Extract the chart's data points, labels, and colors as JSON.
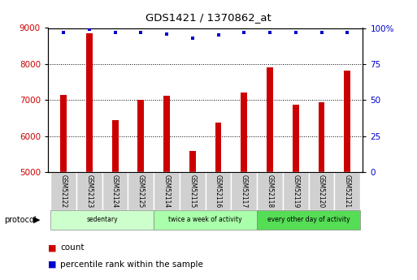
{
  "title": "GDS1421 / 1370862_at",
  "samples": [
    "GSM52122",
    "GSM52123",
    "GSM52124",
    "GSM52125",
    "GSM52114",
    "GSM52115",
    "GSM52116",
    "GSM52117",
    "GSM52118",
    "GSM52119",
    "GSM52120",
    "GSM52121"
  ],
  "counts": [
    7150,
    8850,
    6450,
    7000,
    7120,
    5600,
    6380,
    7220,
    7900,
    6880,
    6950,
    7820
  ],
  "percentile_ranks": [
    97,
    99,
    97,
    97,
    96,
    93,
    95,
    97,
    97,
    97,
    97,
    97
  ],
  "ylim_left": [
    5000,
    9000
  ],
  "ylim_right": [
    0,
    100
  ],
  "yticks_left": [
    5000,
    6000,
    7000,
    8000,
    9000
  ],
  "yticks_right": [
    0,
    25,
    50,
    75,
    100
  ],
  "bar_color": "#cc0000",
  "dot_color": "#0000cc",
  "groups": [
    {
      "label": "sedentary",
      "start": 0,
      "end": 4,
      "color": "#ccffcc"
    },
    {
      "label": "twice a week of activity",
      "start": 4,
      "end": 8,
      "color": "#aaffaa"
    },
    {
      "label": "every other day of activity",
      "start": 8,
      "end": 12,
      "color": "#55dd55"
    }
  ],
  "protocol_label": "protocol",
  "legend_count_label": "count",
  "legend_pct_label": "percentile rank within the sample",
  "background_color": "#ffffff",
  "axis_label_color_left": "#cc0000",
  "axis_label_color_right": "#0000cc",
  "sample_cell_color": "#d0d0d0",
  "sample_cell_edge_color": "#ffffff"
}
